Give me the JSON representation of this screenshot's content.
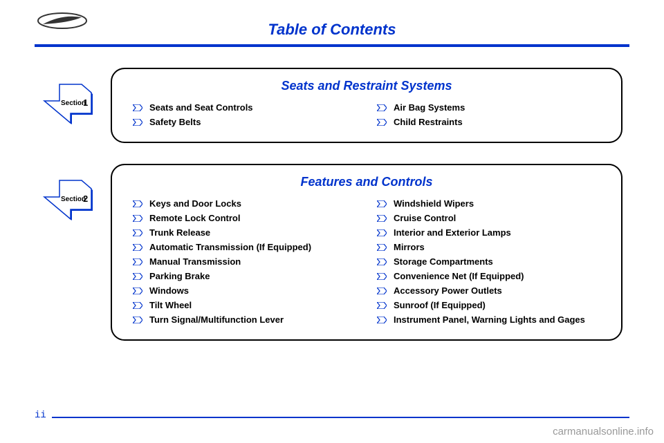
{
  "header": {
    "title": "Table of Contents"
  },
  "page_number": "ii",
  "watermark": "carmanualsonline.info",
  "colors": {
    "primary_blue": "#0033cc",
    "black": "#000000",
    "white": "#ffffff",
    "watermark": "#999999"
  },
  "sections": [
    {
      "number": "1",
      "badge_label": "Section",
      "title": "Seats and Restraint Systems",
      "columns": [
        [
          "Seats and Seat Controls",
          "Safety Belts"
        ],
        [
          "Air Bag Systems",
          "Child Restraints"
        ]
      ]
    },
    {
      "number": "2",
      "badge_label": "Section",
      "title": "Features and Controls",
      "columns": [
        [
          "Keys and Door Locks",
          "Remote Lock Control",
          "Trunk Release",
          "Automatic Transmission (If Equipped)",
          "Manual Transmission",
          "Parking Brake",
          "Windows",
          "Tilt Wheel",
          "Turn Signal/Multifunction Lever"
        ],
        [
          "Windshield Wipers",
          "Cruise Control",
          "Interior and Exterior Lamps",
          "Mirrors",
          "Storage Compartments",
          "Convenience Net (If Equipped)",
          "Accessory Power Outlets",
          "Sunroof (If Equipped)",
          "Instrument Panel, Warning Lights and Gages"
        ]
      ]
    }
  ]
}
